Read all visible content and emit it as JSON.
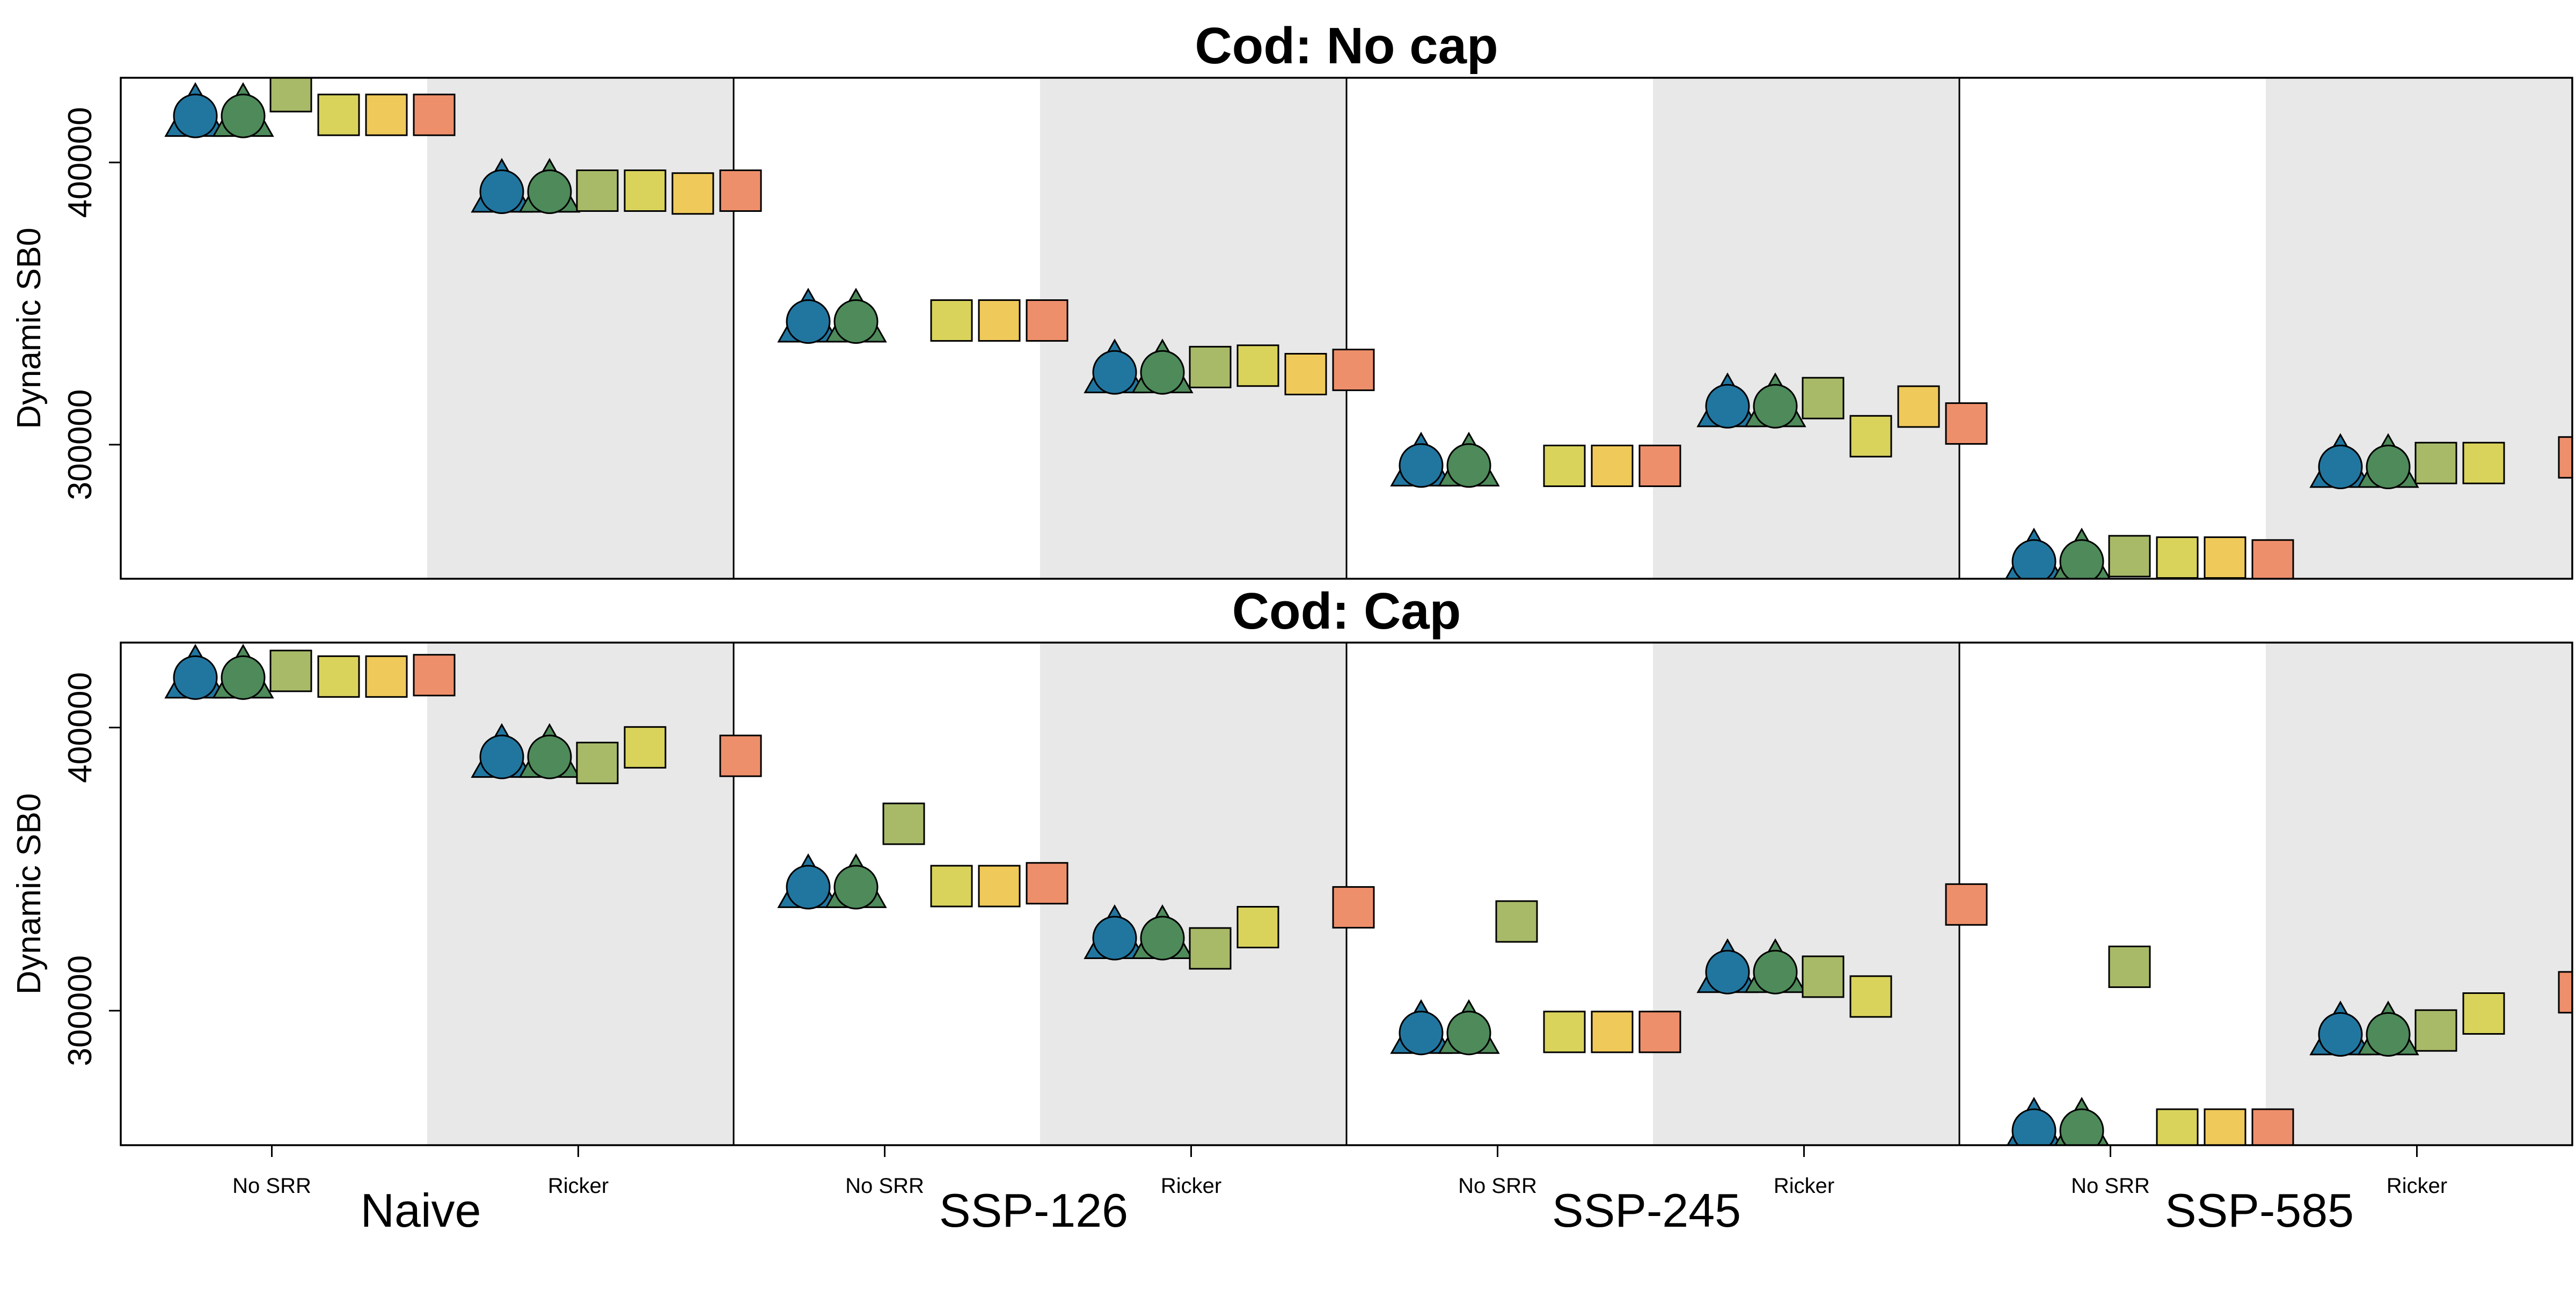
{
  "chart_data": {
    "type": "scatter",
    "groups": [
      "Naive",
      "SSP-126",
      "SSP-245",
      "SSP-585"
    ],
    "subgroups": [
      "No SRR",
      "Ricker"
    ],
    "ylabel": "Dynamic SB0",
    "yticks": [
      300000,
      400000
    ],
    "point_colors": [
      "#2176a0",
      "#4e8a5a",
      "#a8ba68",
      "#d9d35c",
      "#efc95a",
      "#ee8f6b"
    ],
    "point_shapes": [
      "circle-triangle",
      "circle-triangle",
      "square",
      "square",
      "square",
      "square"
    ],
    "shading_color": "#e8e8e8",
    "panels": [
      {
        "title": "Cod: No cap",
        "ylim": [
          252500,
          430000
        ],
        "values": [
          [
            416861,
            416861,
            425250,
            416861,
            416861,
            416861
          ],
          [
            390000,
            390000,
            390000,
            390000,
            389000,
            390000
          ],
          [
            344000,
            344000,
            null,
            344000,
            344000,
            344000
          ],
          [
            326000,
            326000,
            327500,
            328000,
            325000,
            326500
          ],
          [
            293000,
            293000,
            null,
            292500,
            292500,
            292500
          ],
          [
            314000,
            314000,
            316500,
            303000,
            313500,
            307500
          ],
          [
            259000,
            259000,
            260500,
            260000,
            260000,
            259000
          ],
          [
            292500,
            292500,
            293500,
            293500,
            null,
            295500
          ]
        ]
      },
      {
        "title": "Cod: Cap",
        "ylim": [
          252500,
          430000
        ],
        "values": [
          [
            418000,
            418000,
            420000,
            418000,
            418000,
            418500
          ],
          [
            390000,
            390000,
            387500,
            393000,
            null,
            390000
          ],
          [
            344000,
            344000,
            366000,
            344000,
            344000,
            345000
          ],
          [
            326000,
            326000,
            322000,
            329500,
            null,
            336500
          ],
          [
            292500,
            292500,
            331500,
            292500,
            292500,
            292500
          ],
          [
            314000,
            314000,
            312000,
            305000,
            null,
            337500
          ],
          [
            258000,
            258000,
            315500,
            258000,
            258000,
            258000
          ],
          [
            292000,
            292000,
            293000,
            299000,
            null,
            306500
          ]
        ]
      }
    ]
  }
}
